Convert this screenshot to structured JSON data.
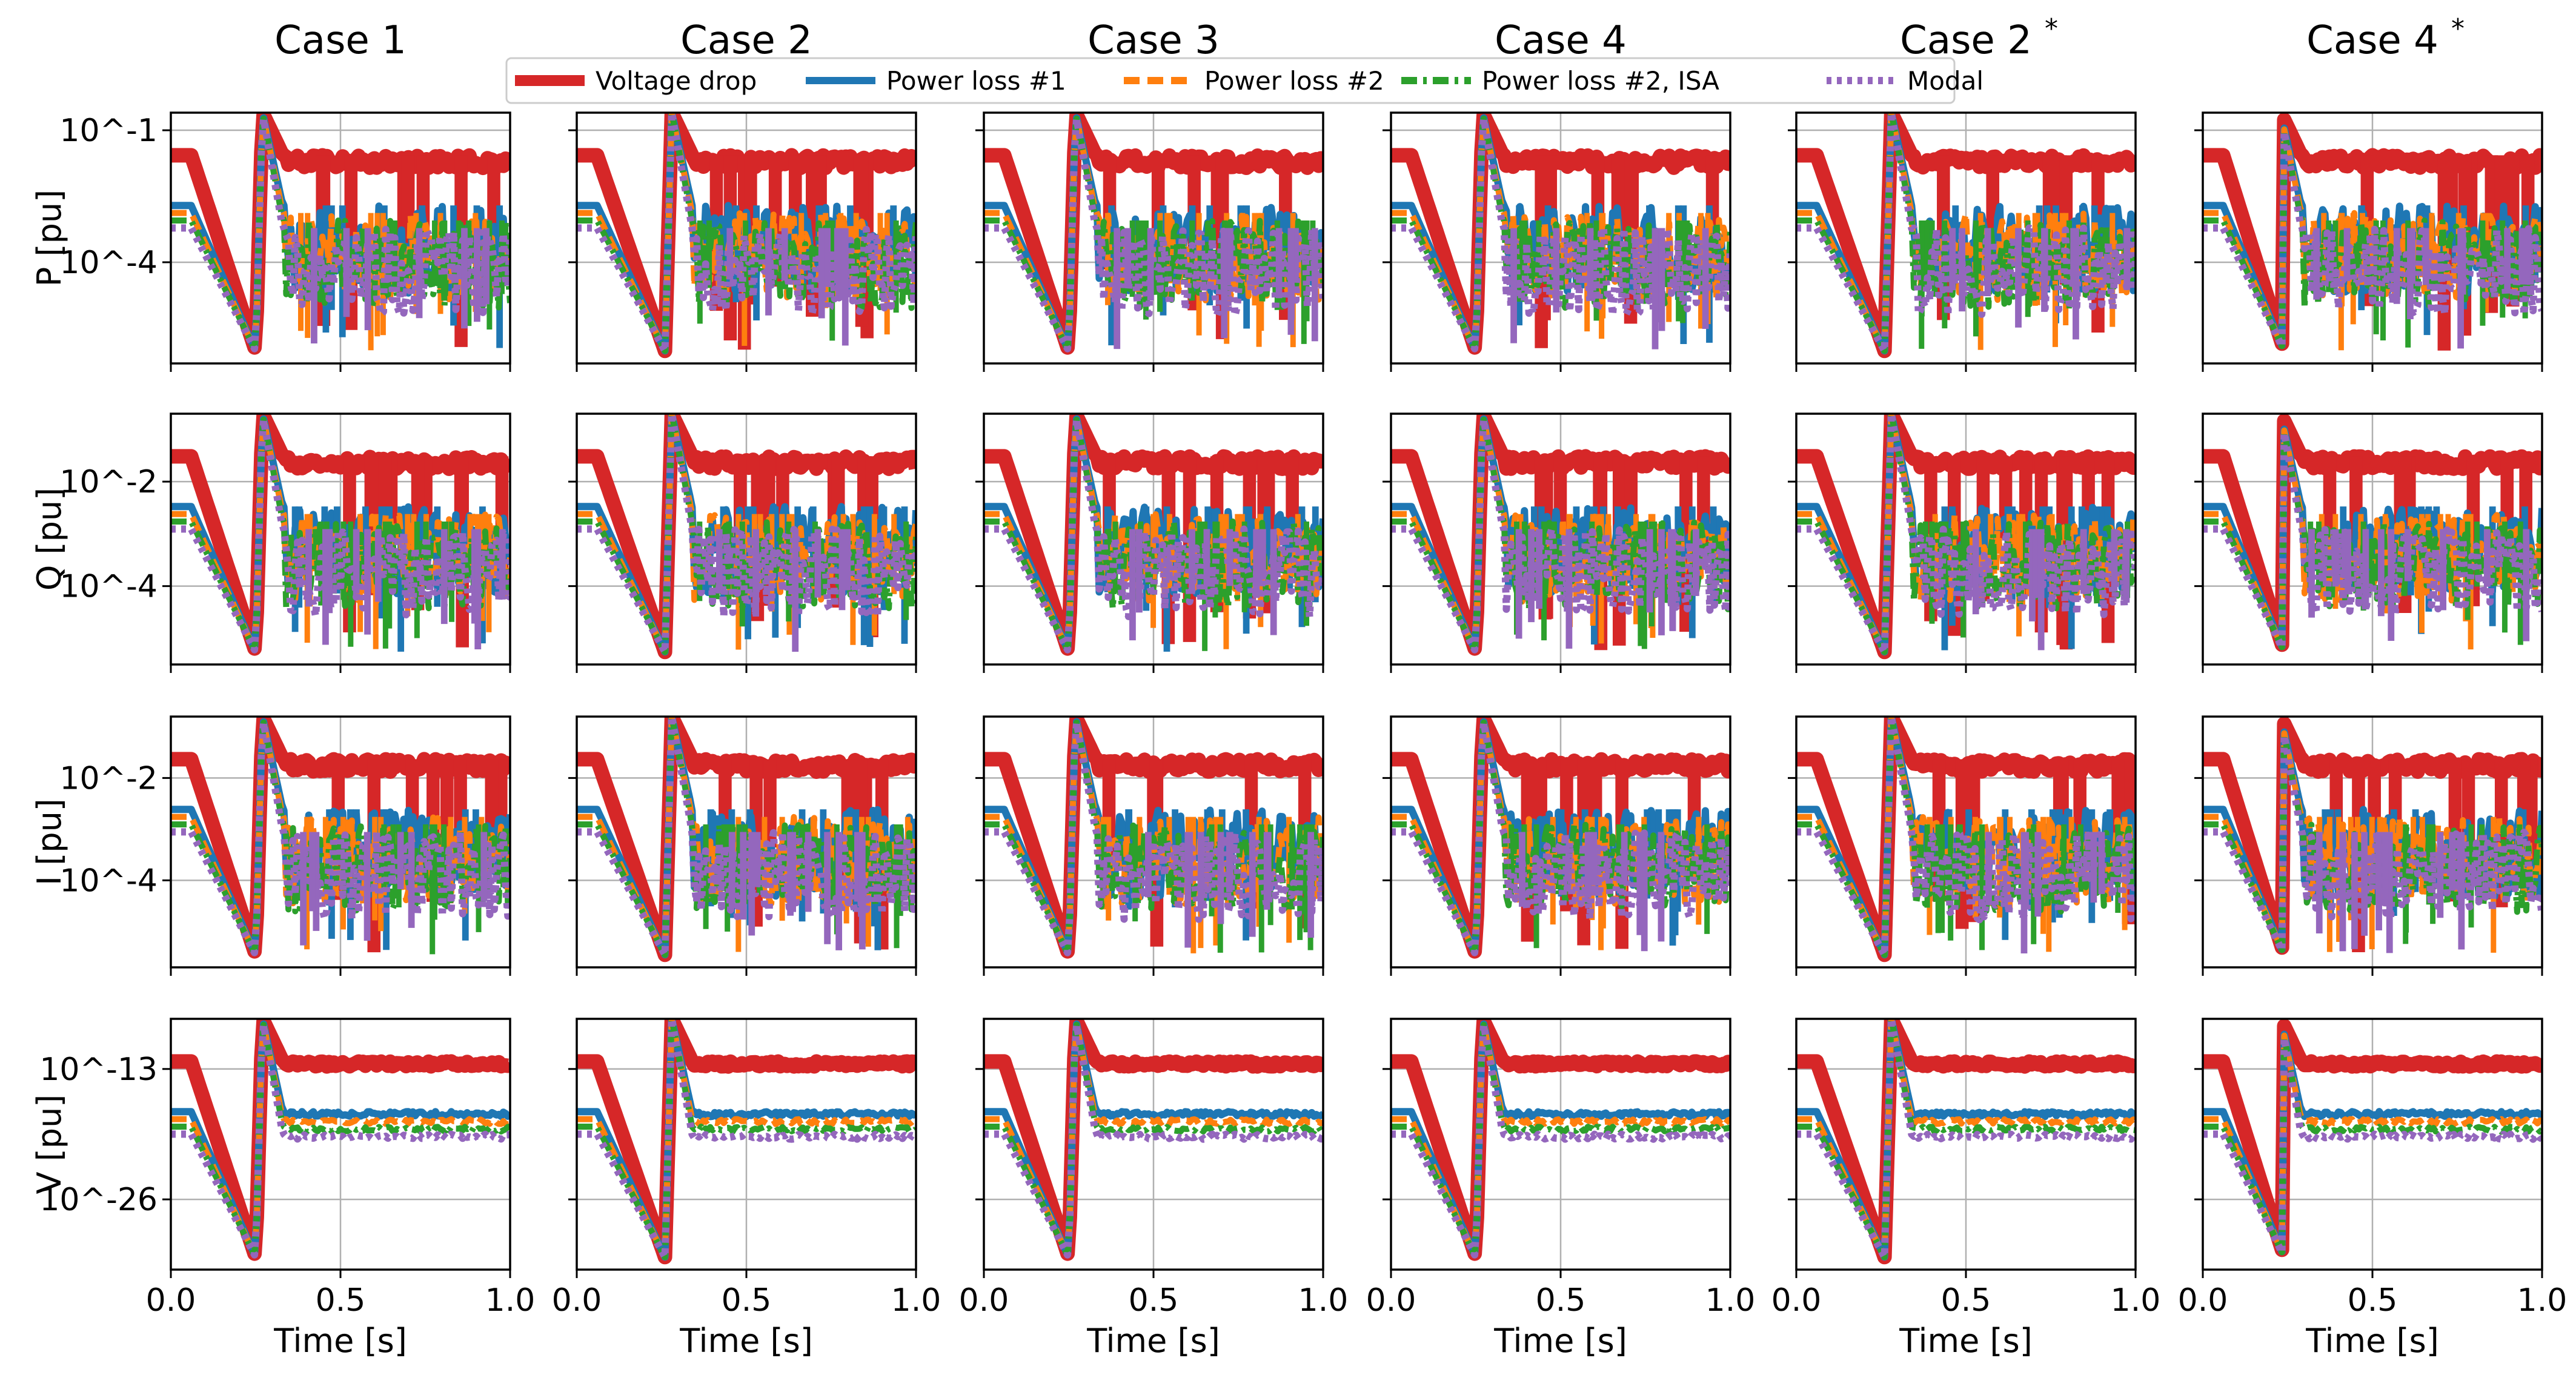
{
  "chart_data": {
    "type": "line",
    "layout": "grid",
    "column_titles": [
      "Case 1",
      "Case 2",
      "Case 3",
      "Case 4",
      "Case 2",
      "Case 4"
    ],
    "column_title_superscripts": [
      "",
      "",
      "",
      "",
      "*",
      "*"
    ],
    "row_ylabels": [
      "P [pu]",
      "Q [pu]",
      "I [pu]",
      "V [pu]"
    ],
    "xlabel": "Time [s]",
    "xlim": [
      0.0,
      1.0
    ],
    "x_ticks": [
      0.0,
      0.5,
      1.0
    ],
    "x_tick_labels": [
      "0.0",
      "0.5",
      "1.0"
    ],
    "y_scale": "log",
    "y_ticks": [
      {
        "exponents": [
          -1,
          -4
        ],
        "labels": [
          "10^-1",
          "10^-4"
        ]
      },
      {
        "exponents": [
          -2,
          -4
        ],
        "labels": [
          "10^-2",
          "10^-4"
        ]
      },
      {
        "exponents": [
          -2,
          -4
        ],
        "labels": [
          "10^-2",
          "10^-4"
        ]
      },
      {
        "exponents": [
          -13,
          -26
        ],
        "labels": [
          "10^-13",
          "10^-26"
        ]
      }
    ],
    "ylim_exponents": [
      [
        -6.3,
        -0.6
      ],
      [
        -5.5,
        -0.7
      ],
      [
        -5.7,
        -0.8
      ],
      [
        -33,
        -8
      ]
    ],
    "grid": true,
    "legend_position": "top",
    "series": [
      {
        "name": "Voltage drop",
        "color": "#d62728",
        "style": "solid"
      },
      {
        "name": "Power loss #1",
        "color": "#1f77b4",
        "style": "solid"
      },
      {
        "name": "Power loss #2",
        "color": "#ff7f0e",
        "style": "dashed"
      },
      {
        "name": "Power loss #2, ISA",
        "color": "#2ca02c",
        "style": "dashdot"
      },
      {
        "name": "Modal",
        "color": "#9467bd",
        "style": "dotted"
      }
    ],
    "trace_shape": {
      "dip_time": [
        0.25,
        0.26,
        0.25,
        0.25,
        0.26,
        0.24
      ],
      "peak_time": [
        0.27,
        0.28,
        0.27,
        0.27,
        0.28,
        0.23
      ]
    }
  }
}
